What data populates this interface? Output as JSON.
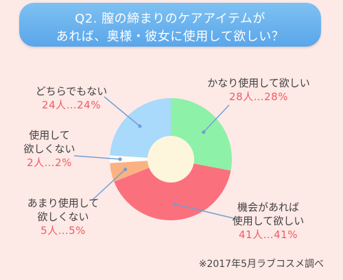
{
  "title": {
    "line1": "Q2. 膣の締まりのケアアイテムが",
    "line2": "あれば、奥様・彼女に使用して欲しい？"
  },
  "colors": {
    "background": "#fde9e6",
    "title_bg": "#6cb3ee",
    "center": "#fdf6dc",
    "value_text": "#ee5c64",
    "leader_line": "#6f9fd6"
  },
  "chart_data": {
    "type": "donut",
    "start": "12 o'clock, clockwise",
    "slices": [
      {
        "label": "かなり使用して欲しい",
        "value_text": "28人…28%",
        "count": 28,
        "percent": 28,
        "color": "#8ef1a8"
      },
      {
        "label": "機会があれば使用して欲しい",
        "value_text": "41人…41%",
        "count": 41,
        "percent": 41,
        "color": "#fb707d"
      },
      {
        "label": "あまり使用して欲しくない",
        "value_text": "5人…5%",
        "count": 5,
        "percent": 5,
        "color": "#fbb283"
      },
      {
        "label": "使用して欲しくない",
        "value_text": "2人…2%",
        "count": 2,
        "percent": 2,
        "color": "#ffffff"
      },
      {
        "label": "どちらでもない",
        "value_text": "24人…24%",
        "count": 24,
        "percent": 24,
        "color": "#a9d9fb"
      }
    ]
  },
  "labels": {
    "very_much": {
      "line1": "かなり使用して欲しい",
      "value": "28人…28%"
    },
    "if_chance": {
      "line1": "機会があれば",
      "line2": "使用して欲しい",
      "value": "41人…41%"
    },
    "not_really": {
      "line1": "あまり使用して",
      "line2": "欲しくない",
      "value": "5人…5%"
    },
    "not_at_all": {
      "line1": "使用して",
      "line2": "欲しくない",
      "value": "2人…2%"
    },
    "neither": {
      "line1": "どちらでもない",
      "value": "24人…24%"
    }
  },
  "source": "※2017年5月ラブコスメ調べ"
}
